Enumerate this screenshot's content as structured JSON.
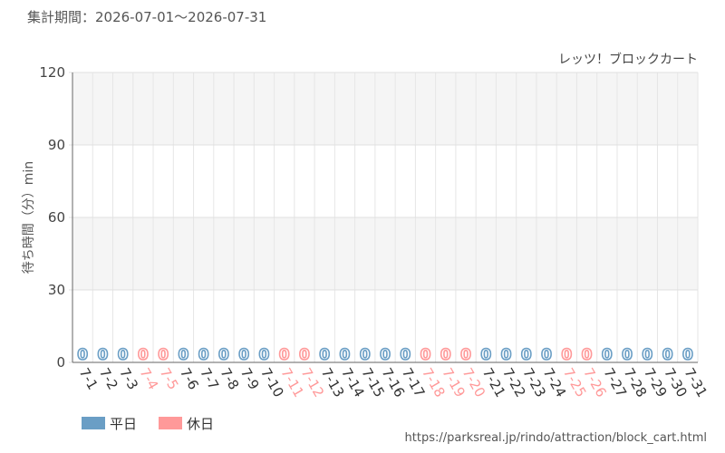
{
  "chart_data": {
    "type": "bar",
    "title": "集計期間：2026-07-01～2026-07-31",
    "subtitle": "レッツ！ブロックカート",
    "y_label": "待ち時間（分）min",
    "source": "https://parksreal.jp/rindo/attraction/block_cart.html",
    "categories": [
      "7-1",
      "7-2",
      "7-3",
      "7-4",
      "7-5",
      "7-6",
      "7-7",
      "7-8",
      "7-9",
      "7-10",
      "7-11",
      "7-12",
      "7-13",
      "7-14",
      "7-15",
      "7-16",
      "7-17",
      "7-18",
      "7-19",
      "7-20",
      "7-21",
      "7-22",
      "7-23",
      "7-24",
      "7-25",
      "7-26",
      "7-27",
      "7-28",
      "7-29",
      "7-30",
      "7-31"
    ],
    "series": [
      {
        "name": "平日",
        "color": "#6a9ec5",
        "values": [
          0,
          0,
          0,
          null,
          null,
          0,
          0,
          0,
          0,
          0,
          null,
          null,
          0,
          0,
          0,
          0,
          0,
          null,
          null,
          null,
          0,
          0,
          0,
          0,
          null,
          null,
          0,
          0,
          0,
          0,
          0
        ]
      },
      {
        "name": "休日",
        "color": "#ff9999",
        "values": [
          null,
          null,
          null,
          0,
          0,
          null,
          null,
          null,
          null,
          null,
          0,
          0,
          null,
          null,
          null,
          null,
          null,
          0,
          0,
          0,
          null,
          null,
          null,
          null,
          0,
          0,
          null,
          null,
          null,
          null,
          null
        ]
      }
    ],
    "ylim": [
      0,
      120
    ],
    "yticks": [
      0,
      30,
      60,
      90,
      120
    ],
    "grid": true
  }
}
